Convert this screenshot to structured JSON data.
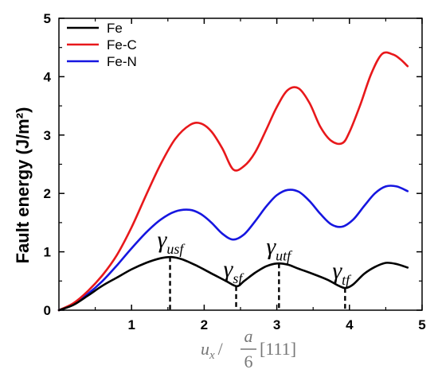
{
  "chart_data": {
    "type": "line",
    "title": "",
    "ylabel": "Fault energy (J/m²)",
    "xlabel": {
      "u": "u",
      "u_sub": "x",
      "slash": "/",
      "numerator": "a",
      "denominator": "6",
      "direction": "[111]"
    },
    "xlim": [
      0,
      5
    ],
    "ylim": [
      0,
      5
    ],
    "xticks": [
      "1",
      "2",
      "3",
      "4",
      "5"
    ],
    "yticks": [
      "0",
      "1",
      "2",
      "3",
      "4",
      "5"
    ],
    "xtick_values": [
      1,
      2,
      3,
      4,
      5
    ],
    "ytick_values": [
      0,
      1,
      2,
      3,
      4,
      5
    ],
    "grid": false,
    "legend_position": "top-left",
    "series": [
      {
        "name": "Fe",
        "color": "#000000",
        "x": [
          0,
          0.2,
          0.4,
          0.6,
          0.8,
          1.0,
          1.2,
          1.4,
          1.55,
          1.7,
          1.9,
          2.1,
          2.3,
          2.45,
          2.55,
          2.7,
          2.85,
          3.0,
          3.15,
          3.3,
          3.5,
          3.7,
          3.85,
          3.95,
          4.05,
          4.2,
          4.35,
          4.5,
          4.65,
          4.8
        ],
        "values": [
          0,
          0.09,
          0.25,
          0.42,
          0.56,
          0.7,
          0.81,
          0.89,
          0.91,
          0.87,
          0.76,
          0.63,
          0.5,
          0.41,
          0.5,
          0.64,
          0.75,
          0.8,
          0.78,
          0.71,
          0.62,
          0.52,
          0.42,
          0.38,
          0.44,
          0.62,
          0.74,
          0.81,
          0.79,
          0.73
        ]
      },
      {
        "name": "Fe-C",
        "color": "#e8181b",
        "x": [
          0,
          0.2,
          0.4,
          0.6,
          0.8,
          1.0,
          1.2,
          1.4,
          1.6,
          1.8,
          1.95,
          2.1,
          2.25,
          2.4,
          2.55,
          2.7,
          2.85,
          3.0,
          3.15,
          3.3,
          3.45,
          3.6,
          3.75,
          3.9,
          4.0,
          4.15,
          4.3,
          4.45,
          4.6,
          4.7,
          4.8
        ],
        "values": [
          0,
          0.12,
          0.33,
          0.6,
          0.95,
          1.42,
          1.97,
          2.5,
          2.93,
          3.17,
          3.2,
          3.06,
          2.77,
          2.41,
          2.47,
          2.7,
          3.08,
          3.48,
          3.77,
          3.8,
          3.55,
          3.14,
          2.9,
          2.86,
          3.05,
          3.52,
          4.05,
          4.39,
          4.38,
          4.3,
          4.18
        ]
      },
      {
        "name": "Fe-N",
        "color": "#1616e0",
        "x": [
          0,
          0.2,
          0.4,
          0.6,
          0.8,
          1.0,
          1.2,
          1.4,
          1.6,
          1.8,
          1.95,
          2.1,
          2.25,
          2.4,
          2.55,
          2.7,
          2.85,
          3.0,
          3.15,
          3.3,
          3.45,
          3.6,
          3.75,
          3.9,
          4.05,
          4.2,
          4.35,
          4.5,
          4.65,
          4.8
        ],
        "values": [
          0,
          0.1,
          0.28,
          0.5,
          0.77,
          1.06,
          1.33,
          1.55,
          1.69,
          1.72,
          1.65,
          1.5,
          1.31,
          1.21,
          1.3,
          1.52,
          1.77,
          1.97,
          2.06,
          2.03,
          1.87,
          1.65,
          1.47,
          1.43,
          1.55,
          1.78,
          2.0,
          2.12,
          2.12,
          2.04
        ]
      }
    ],
    "annotations": [
      {
        "symbol": "γ",
        "sub": "usf",
        "x": 1.53,
        "y": 0.91
      },
      {
        "symbol": "γ",
        "sub": "sf",
        "x": 2.44,
        "y": 0.41
      },
      {
        "symbol": "γ",
        "sub": "utf",
        "x": 3.03,
        "y": 0.8
      },
      {
        "symbol": "γ",
        "sub": "tf",
        "x": 3.94,
        "y": 0.38
      }
    ]
  }
}
